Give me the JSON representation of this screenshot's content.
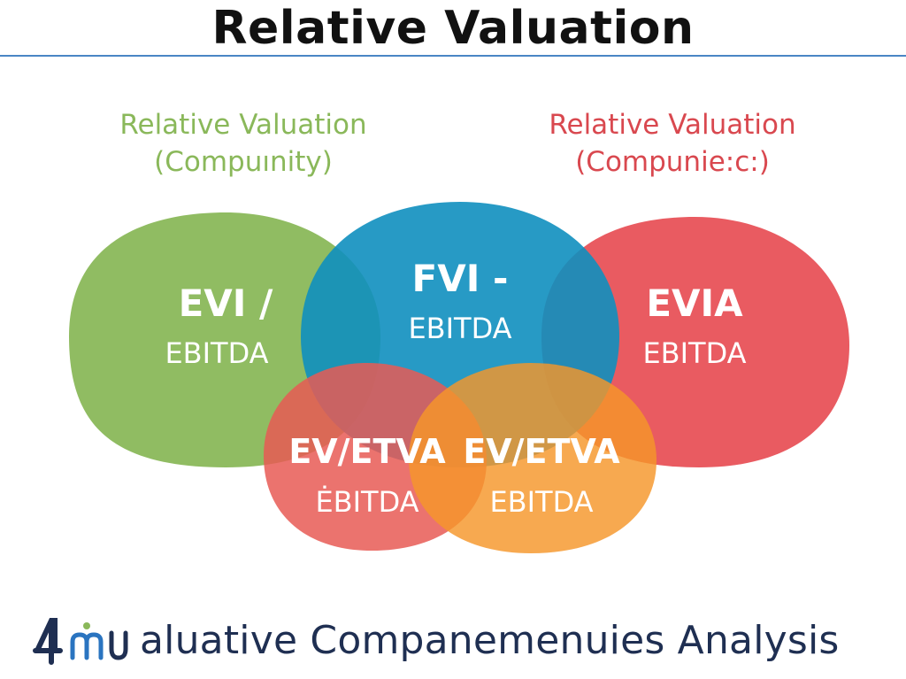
{
  "title": "Relative Valuation",
  "captions": {
    "left": [
      "Relative Valuation",
      "(Compuınity)"
    ],
    "right": [
      "Relative Valuation",
      "(Compunie:c:)"
    ]
  },
  "circles": {
    "left": {
      "head": "EVI /",
      "sub": "EBITDA",
      "color": "#8ab85a"
    },
    "center": {
      "head": "FVI -",
      "sub": "EBITDA",
      "color": "#0f8fbf"
    },
    "right": {
      "head": "EVIA",
      "sub": "EBITDA",
      "color": "#e85258"
    },
    "bottom_left": {
      "head": "EV/ETVA",
      "sub": "ĖBITDA",
      "color": "#e85a55"
    },
    "bottom_right": {
      "head": "EV/ETVA",
      "sub": "EBITDA",
      "color": "#f5962a"
    }
  },
  "footer": {
    "text": "aluative Companemenuies Analysis",
    "logo_icon": "company-logo-icon",
    "text_color": "#1f2f52"
  },
  "colors": {
    "rule": "#4a86c5"
  }
}
